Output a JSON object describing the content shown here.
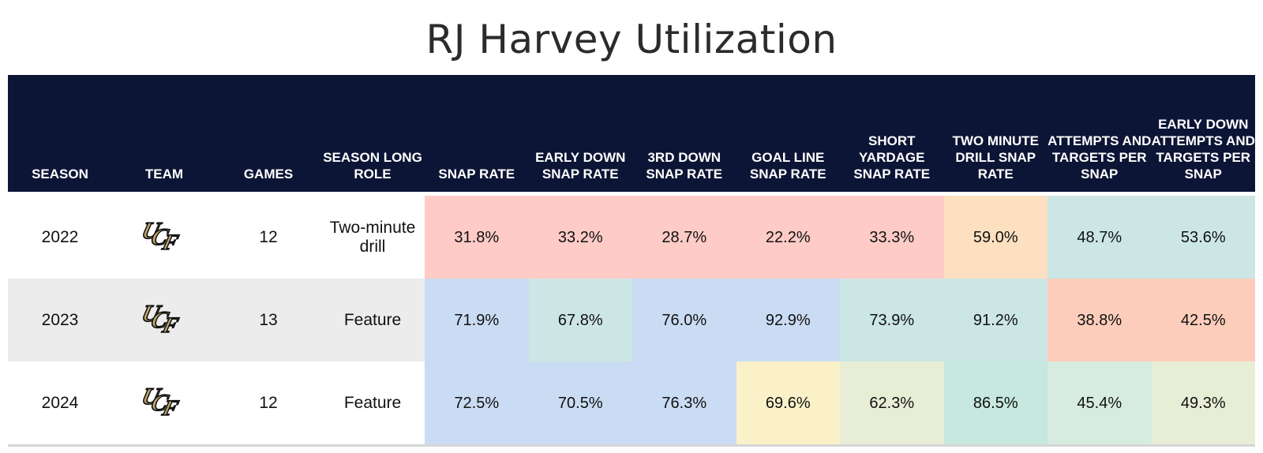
{
  "title": "RJ Harvey Utilization",
  "colors": {
    "header_bg": "#0c1535",
    "row_alt_bg": "#ececec",
    "pink": "#fecbc6",
    "peach": "#fde0c0",
    "salmon": "#fdcdbb",
    "teal": "#cbe6e5",
    "teal_green": "#c6e8df",
    "blue": "#cadcf3",
    "yellow": "#fbf1c9",
    "sage": "#e8eed6",
    "mint": "#d6ece0",
    "team_gold": "#bfa56a"
  },
  "chart_data": {
    "type": "table",
    "title": "RJ Harvey Utilization",
    "columns": [
      "SEASON",
      "TEAM",
      "GAMES",
      "SEASON LONG ROLE",
      "SNAP RATE",
      "EARLY DOWN SNAP RATE",
      "3RD DOWN SNAP RATE",
      "GOAL LINE SNAP RATE",
      "SHORT YARDAGE SNAP RATE",
      "TWO MINUTE DRILL SNAP RATE",
      "ATTEMPTS AND TARGETS PER SNAP",
      "EARLY DOWN ATTEMPTS AND TARGETS PER SNAP"
    ],
    "rows": [
      {
        "season": "2022",
        "team": "UCF",
        "games": "12",
        "role": "Two-minute drill",
        "values": [
          "31.8%",
          "33.2%",
          "28.7%",
          "22.2%",
          "33.3%",
          "59.0%",
          "48.7%",
          "53.6%"
        ],
        "colors": [
          "#fecbc6",
          "#fecbc6",
          "#fecbc6",
          "#fecbc6",
          "#fecbc6",
          "#fde0c0",
          "#cbe6e5",
          "#cbe6e5"
        ]
      },
      {
        "season": "2023",
        "team": "UCF",
        "games": "13",
        "role": "Feature",
        "values": [
          "71.9%",
          "67.8%",
          "76.0%",
          "92.9%",
          "73.9%",
          "91.2%",
          "38.8%",
          "42.5%"
        ],
        "colors": [
          "#cadcf3",
          "#cbe6e5",
          "#cadcf3",
          "#cadcf3",
          "#cbe6e5",
          "#cbe6e5",
          "#fdcdbb",
          "#fdcdbb"
        ]
      },
      {
        "season": "2024",
        "team": "UCF",
        "games": "12",
        "role": "Feature",
        "values": [
          "72.5%",
          "70.5%",
          "76.3%",
          "69.6%",
          "62.3%",
          "86.5%",
          "45.4%",
          "49.3%"
        ],
        "colors": [
          "#cadcf3",
          "#cadcf3",
          "#cadcf3",
          "#fbf1c9",
          "#e8eed6",
          "#c6e8df",
          "#d6ece0",
          "#e8eed6"
        ]
      }
    ]
  }
}
